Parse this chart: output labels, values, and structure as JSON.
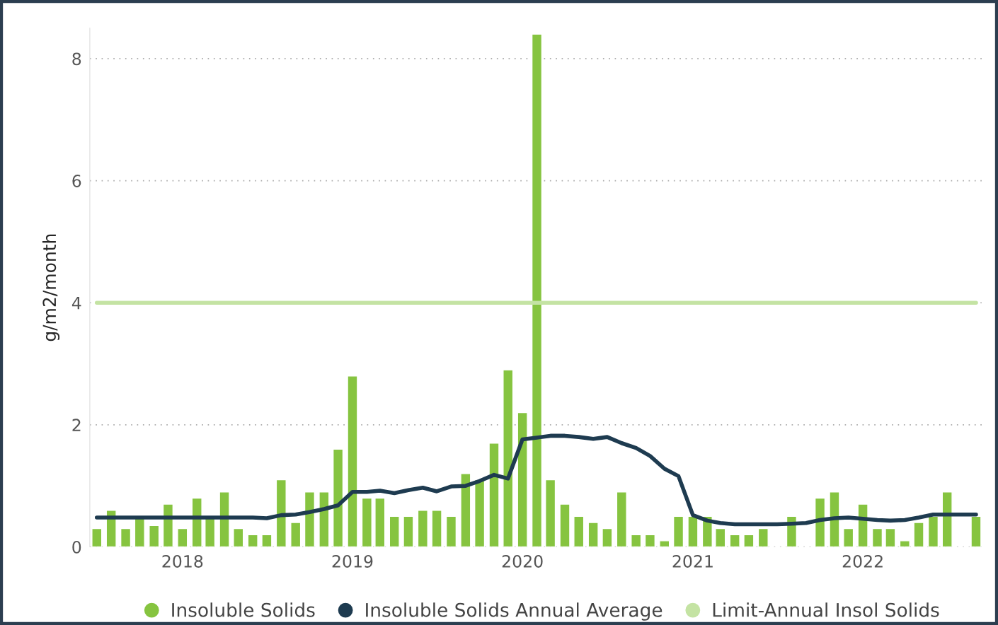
{
  "chart_data": {
    "type": "bar",
    "ylabel": "g/m2/month",
    "x": [
      "2017-07",
      "2017-08",
      "2017-09",
      "2017-10",
      "2017-11",
      "2017-12",
      "2018-01",
      "2018-02",
      "2018-03",
      "2018-04",
      "2018-05",
      "2018-06",
      "2018-07",
      "2018-08",
      "2018-09",
      "2018-10",
      "2018-11",
      "2018-12",
      "2019-01",
      "2019-02",
      "2019-03",
      "2019-04",
      "2019-05",
      "2019-06",
      "2019-07",
      "2019-08",
      "2019-09",
      "2019-10",
      "2019-11",
      "2019-12",
      "2020-01",
      "2020-02",
      "2020-03",
      "2020-04",
      "2020-05",
      "2020-06",
      "2020-07",
      "2020-08",
      "2020-09",
      "2020-10",
      "2020-11",
      "2020-12",
      "2021-01",
      "2021-02",
      "2021-03",
      "2021-04",
      "2021-05",
      "2021-06",
      "2021-07",
      "2021-08",
      "2021-09",
      "2021-10",
      "2021-11",
      "2021-12",
      "2022-01",
      "2022-02",
      "2022-03",
      "2022-04",
      "2022-05",
      "2022-06",
      "2022-07",
      "2022-08",
      "2022-09"
    ],
    "series": [
      {
        "name": "Insoluble Solids",
        "color": "#86c440",
        "values": [
          0.3,
          0.6,
          0.3,
          0.5,
          0.35,
          0.7,
          0.3,
          0.8,
          0.5,
          0.9,
          0.3,
          0.2,
          0.2,
          1.1,
          0.4,
          0.9,
          0.9,
          1.6,
          2.8,
          0.8,
          0.8,
          0.5,
          0.5,
          0.6,
          0.6,
          0.5,
          1.2,
          1.1,
          1.7,
          2.9,
          2.2,
          8.4,
          1.1,
          0.7,
          0.5,
          0.4,
          0.3,
          0.9,
          0.2,
          0.2,
          0.1,
          0.5,
          0.5,
          0.5,
          0.3,
          0.2,
          0.2,
          0.3,
          null,
          0.5,
          null,
          0.8,
          0.9,
          0.3,
          0.7,
          0.3,
          0.3,
          0.1,
          0.4,
          0.5,
          0.9,
          null,
          0.5
        ]
      },
      {
        "name": "Insoluble Solids Annual Average",
        "type": "line",
        "color": "#1e3b50",
        "values": [
          0.48,
          0.48,
          0.48,
          0.48,
          0.48,
          0.48,
          0.48,
          0.48,
          0.48,
          0.48,
          0.48,
          0.48,
          0.47,
          0.52,
          0.53,
          0.57,
          0.62,
          0.68,
          0.9,
          0.9,
          0.92,
          0.88,
          0.93,
          0.97,
          0.91,
          0.99,
          1.0,
          1.08,
          1.18,
          1.12,
          1.76,
          1.79,
          1.82,
          1.82,
          1.8,
          1.77,
          1.8,
          1.7,
          1.62,
          1.49,
          1.28,
          1.16,
          0.52,
          0.43,
          0.39,
          0.37,
          0.37,
          0.37,
          0.37,
          0.38,
          0.39,
          0.44,
          0.47,
          0.48,
          0.46,
          0.44,
          0.43,
          0.44,
          0.48,
          0.53,
          0.53,
          0.53,
          0.53
        ]
      },
      {
        "name": "Limit-Annual Insol Solids",
        "type": "line",
        "color": "#c4e3a3",
        "values": [
          4,
          4,
          4,
          4,
          4,
          4,
          4,
          4,
          4,
          4,
          4,
          4,
          4,
          4,
          4,
          4,
          4,
          4,
          4,
          4,
          4,
          4,
          4,
          4,
          4,
          4,
          4,
          4,
          4,
          4,
          4,
          4,
          4,
          4,
          4,
          4,
          4,
          4,
          4,
          4,
          4,
          4,
          4,
          4,
          4,
          4,
          4,
          4,
          4,
          4,
          4,
          4,
          4,
          4,
          4,
          4,
          4,
          4,
          4,
          4,
          4,
          4,
          4
        ]
      }
    ],
    "xlim": [
      "2017-06-16",
      "2022-09-16"
    ],
    "xticks": [
      {
        "value": "2018-01",
        "label": "2018"
      },
      {
        "value": "2019-01",
        "label": "2019"
      },
      {
        "value": "2020-01",
        "label": "2020"
      },
      {
        "value": "2021-01",
        "label": "2021"
      },
      {
        "value": "2022-01",
        "label": "2022"
      }
    ],
    "ylim": [
      0,
      8.5
    ],
    "yticks": [
      0,
      2,
      4,
      6,
      8
    ],
    "grid": "y",
    "legend": "bottom"
  }
}
